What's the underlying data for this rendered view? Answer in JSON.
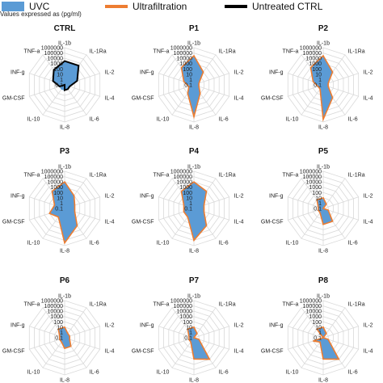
{
  "legend": {
    "uvc": "UVC",
    "ultrafiltration": "Ultrafiltration",
    "untreated": "Untreated CTRL",
    "note": "Values expressed as (pg/ml)"
  },
  "colors": {
    "uvc_fill": "#5b9bd5",
    "ultrafiltration": "#ed7d31",
    "untreated": "#000000",
    "grid": "#d9d9d9"
  },
  "chart_data": {
    "type": "radar",
    "scale": "log10",
    "axes": [
      "IL-1b",
      "IL-1Ra",
      "IL-2",
      "IL-4",
      "IL-6",
      "IL-8",
      "IL-10",
      "GM-CSF",
      "INF-g",
      "TNF-a"
    ],
    "rings": [
      "0.1",
      "1",
      "10",
      "100",
      "1000",
      "10000",
      "100000",
      "1000000"
    ],
    "panels": [
      {
        "title": "CTRL",
        "series": [
          {
            "name": "UVC",
            "values": [
              3000,
              3000,
              30,
              1,
              1,
              1,
              1,
              1,
              20,
              300
            ]
          },
          {
            "name": "Untreated CTRL",
            "values": [
              3000,
              3000,
              30,
              1,
              1,
              1,
              0.1,
              1,
              20,
              300
            ]
          }
        ]
      },
      {
        "title": "P1",
        "series": [
          {
            "name": "UVC",
            "values": [
              30000,
              100,
              1,
              1,
              10,
              100000,
              10,
              1,
              10,
              1000
            ]
          },
          {
            "name": "Ultrafiltration",
            "values": [
              30000,
              100,
              1,
              1,
              10,
              100000,
              10,
              1,
              10,
              1000
            ]
          }
        ]
      },
      {
        "title": "P2",
        "series": [
          {
            "name": "UVC",
            "values": [
              30000,
              100,
              1,
              1,
              100,
              300000,
              1,
              1,
              10,
              1000
            ]
          },
          {
            "name": "Ultrafiltration",
            "values": [
              30000,
              100,
              1,
              1,
              100,
              300000,
              1,
              1,
              10,
              1000
            ]
          }
        ]
      },
      {
        "title": "P3",
        "series": [
          {
            "name": "UVC",
            "values": [
              10000,
              100,
              10,
              10,
              1000,
              300000,
              10,
              100,
              10,
              1000
            ]
          },
          {
            "name": "Ultrafiltration",
            "values": [
              10000,
              100,
              10,
              10,
              1000,
              300000,
              10,
              100,
              10,
              1000
            ]
          }
        ]
      },
      {
        "title": "P4",
        "series": [
          {
            "name": "UVC",
            "values": [
              10000,
              1000,
              10,
              10,
              1000,
              100000,
              10,
              10,
              10,
              1000
            ]
          },
          {
            "name": "Ultrafiltration",
            "values": [
              10000,
              1000,
              10,
              10,
              1000,
              100000,
              10,
              10,
              10,
              1000
            ]
          }
        ]
      },
      {
        "title": "P5",
        "series": [
          {
            "name": "UVC",
            "values": [
              10,
              1,
              0.1,
              1,
              100,
              100,
              1,
              1,
              1,
              10
            ]
          },
          {
            "name": "Ultrafiltration",
            "values": [
              10,
              1,
              0.1,
              1,
              100,
              100,
              1,
              1,
              1,
              10
            ]
          }
        ]
      },
      {
        "title": "P6",
        "series": [
          {
            "name": "UVC",
            "values": [
              10,
              1,
              1,
              1,
              10,
              10,
              1,
              1,
              1,
              10
            ]
          },
          {
            "name": "Ultrafiltration",
            "values": [
              10,
              1,
              1,
              1,
              10,
              10,
              1,
              1,
              1,
              10
            ]
          }
        ]
      },
      {
        "title": "P7",
        "series": [
          {
            "name": "UVC",
            "values": [
              10,
              1,
              0.1,
              1,
              10000,
              1000,
              1,
              1,
              1,
              10
            ]
          },
          {
            "name": "Ultrafiltration",
            "values": [
              10,
              1,
              0.1,
              1,
              10000,
              1000,
              1,
              1,
              1,
              10
            ]
          }
        ]
      },
      {
        "title": "P8",
        "series": [
          {
            "name": "UVC",
            "values": [
              10,
              1,
              0.1,
              1,
              10000,
              1000,
              1,
              10,
              0.1,
              10
            ]
          },
          {
            "name": "Ultrafiltration",
            "values": [
              10,
              1,
              0.1,
              1,
              10000,
              1000,
              1,
              10,
              0.1,
              10
            ]
          }
        ]
      }
    ]
  }
}
